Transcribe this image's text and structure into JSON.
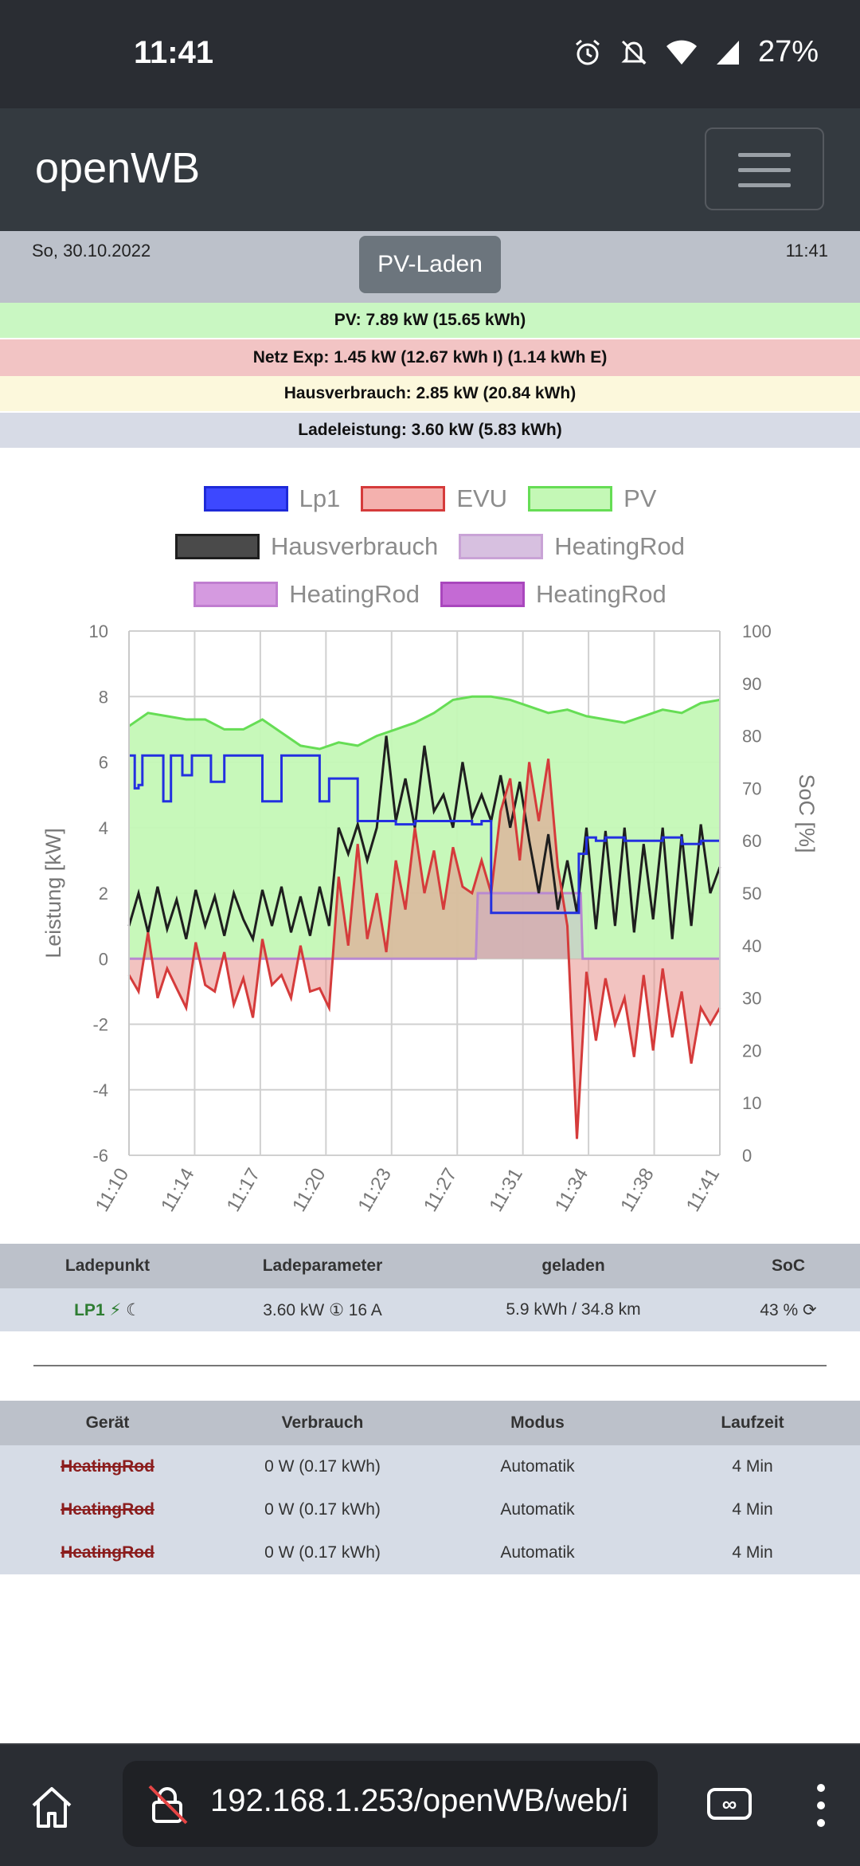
{
  "status_bar": {
    "time": "11:41",
    "battery": "27%",
    "icons": [
      "alarm-icon",
      "mute-icon",
      "wifi-icon",
      "signal-icon"
    ]
  },
  "navbar": {
    "brand": "openWB",
    "menu_icon": "hamburger-icon"
  },
  "datebar": {
    "date": "So, 30.10.2022",
    "mode_button": "PV-Laden",
    "time": "11:41"
  },
  "summary": {
    "pv": "PV: 7.89 kW (15.65 kWh)",
    "grid": "Netz Exp: 1.45 kW (12.67 kWh I) (1.14 kWh E)",
    "house": "Hausverbrauch: 2.85 kW (20.84 kWh)",
    "charge": "Ladeleistung: 3.60 kW (5.83 kWh)"
  },
  "colors": {
    "pv_bg": "#c9f7c2",
    "grid_bg": "#f2c4c4",
    "house_bg": "#fcf8dc",
    "charge_bg": "#d7dbe6"
  },
  "chart_data": {
    "type": "line",
    "ylabel": "Leistung [kW]",
    "y2label": "SoC [%]",
    "ylim": [
      -6,
      10
    ],
    "y2lim": [
      0,
      100
    ],
    "y_ticks": [
      "10",
      "8",
      "6",
      "4",
      "2",
      "0",
      "-2",
      "-4",
      "-6"
    ],
    "y2_ticks": [
      "100",
      "90",
      "80",
      "70",
      "60",
      "50",
      "40",
      "30",
      "20",
      "10",
      "0"
    ],
    "x_labels": [
      "11:10",
      "11:14",
      "11:17",
      "11:20",
      "11:23",
      "11:27",
      "11:31",
      "11:34",
      "11:38",
      "11:41"
    ],
    "legend": [
      {
        "name": "Lp1",
        "fill": "#3d48ff",
        "stroke": "#1e2ad8"
      },
      {
        "name": "EVU",
        "fill": "#f4b1ae",
        "stroke": "#d53b3b"
      },
      {
        "name": "PV",
        "fill": "#c4f8b6",
        "stroke": "#66dd55"
      },
      {
        "name": "Hausverbrauch",
        "fill": "#4a4a4a",
        "stroke": "#1e1e1e"
      },
      {
        "name": "HeatingRod",
        "fill": "#d7c0e0",
        "stroke": "#c9a3d6"
      },
      {
        "name": "HeatingRod",
        "fill": "#d59ae0",
        "stroke": "#c07dd0"
      },
      {
        "name": "HeatingRod",
        "fill": "#c46ad4",
        "stroke": "#a947bd"
      }
    ],
    "series": [
      {
        "name": "PV",
        "t": [
          0,
          1,
          2,
          3,
          4,
          5,
          6,
          7,
          8,
          9,
          10,
          11,
          12,
          13,
          14,
          15,
          16,
          17,
          18,
          19,
          20,
          21,
          22,
          23,
          24,
          25,
          26,
          27,
          28,
          29,
          30,
          31
        ],
        "values": [
          7.1,
          7.5,
          7.4,
          7.3,
          7.3,
          7.0,
          7.0,
          7.3,
          6.9,
          6.5,
          6.4,
          6.6,
          6.5,
          6.8,
          7.0,
          7.2,
          7.5,
          7.9,
          8.0,
          8.0,
          7.9,
          7.7,
          7.5,
          7.6,
          7.4,
          7.3,
          7.2,
          7.4,
          7.6,
          7.5,
          7.8,
          7.9
        ]
      },
      {
        "name": "Lp1",
        "t": [
          0,
          0.3,
          0.5,
          0.7,
          1.2,
          1.8,
          2.2,
          2.8,
          3.3,
          3.9,
          4.3,
          5,
          6,
          7,
          8,
          9,
          10,
          10.5,
          11,
          12,
          13,
          14,
          15,
          16,
          17,
          18,
          18.5,
          18.8,
          19,
          20,
          21,
          22,
          23,
          23.5,
          23.6,
          24,
          24.5,
          25,
          26,
          27,
          28,
          29,
          30,
          31
        ],
        "values": [
          6.2,
          5.2,
          5.3,
          6.2,
          6.2,
          4.8,
          6.2,
          5.6,
          6.2,
          6.2,
          5.4,
          6.2,
          6.2,
          4.8,
          6.2,
          6.2,
          4.8,
          5.5,
          5.5,
          4.2,
          4.2,
          4.1,
          4.2,
          4.2,
          4.2,
          4.1,
          4.2,
          4.2,
          1.4,
          1.4,
          1.4,
          1.4,
          1.4,
          1.4,
          3.2,
          3.7,
          3.6,
          3.7,
          3.6,
          3.6,
          3.7,
          3.5,
          3.6,
          3.6
        ]
      },
      {
        "name": "Hausverbrauch",
        "t": [
          0,
          0.5,
          1,
          1.5,
          2,
          2.5,
          3,
          3.5,
          4,
          4.5,
          5,
          5.5,
          6,
          6.5,
          7,
          7.5,
          8,
          8.5,
          9,
          9.5,
          10,
          10.5,
          11,
          11.5,
          12,
          12.5,
          13,
          13.5,
          14,
          14.5,
          15,
          15.5,
          16,
          16.5,
          17,
          17.5,
          18,
          18.5,
          19,
          19.5,
          20,
          20.5,
          21,
          21.5,
          22,
          22.5,
          23,
          23.5,
          24,
          24.5,
          25,
          25.5,
          26,
          26.5,
          27,
          27.5,
          28,
          28.5,
          29,
          29.5,
          30,
          30.5,
          31
        ],
        "values": [
          1.0,
          2.0,
          0.8,
          2.2,
          0.9,
          1.8,
          0.6,
          2.1,
          1.0,
          1.9,
          0.7,
          2.0,
          1.2,
          0.6,
          2.1,
          1.0,
          2.2,
          0.8,
          1.9,
          0.7,
          2.2,
          1.0,
          4.0,
          3.2,
          4.1,
          3.0,
          4.0,
          6.8,
          4.2,
          5.5,
          4.0,
          6.5,
          4.5,
          5.0,
          4.0,
          6.0,
          4.3,
          5.0,
          4.2,
          5.6,
          4.0,
          5.4,
          3.6,
          2.0,
          3.8,
          1.5,
          3.0,
          1.4,
          4.0,
          0.9,
          3.9,
          1.0,
          4.0,
          0.8,
          3.5,
          1.2,
          4.0,
          0.6,
          3.8,
          1.0,
          4.1,
          2.0,
          2.8
        ]
      },
      {
        "name": "EVU",
        "t": [
          0,
          0.5,
          1,
          1.5,
          2,
          2.5,
          3,
          3.5,
          4,
          4.5,
          5,
          5.5,
          6,
          6.5,
          7,
          7.5,
          8,
          8.5,
          9,
          9.5,
          10,
          10.5,
          11,
          11.5,
          12,
          12.5,
          13,
          13.5,
          14,
          14.5,
          15,
          15.5,
          16,
          16.5,
          17,
          17.5,
          18,
          18.5,
          19,
          19.5,
          20,
          20.5,
          21,
          21.5,
          22,
          22.5,
          23,
          23.5,
          24,
          24.5,
          25,
          25.5,
          26,
          26.5,
          27,
          27.5,
          28,
          28.5,
          29,
          29.5,
          30,
          30.5,
          31
        ],
        "values": [
          -0.5,
          -1.0,
          0.8,
          -1.2,
          -0.3,
          -0.9,
          -1.5,
          0.5,
          -0.8,
          -1.0,
          0.2,
          -1.4,
          -0.6,
          -1.8,
          0.6,
          -0.8,
          -0.5,
          -1.2,
          0.4,
          -1.0,
          -0.9,
          -1.5,
          2.5,
          0.4,
          3.5,
          0.6,
          2.0,
          0.2,
          3.0,
          1.5,
          4.0,
          2.0,
          3.3,
          1.5,
          3.4,
          2.2,
          2.0,
          3.0,
          2.0,
          4.5,
          5.5,
          3.0,
          6.0,
          4.2,
          6.1,
          2.8,
          1.0,
          -5.5,
          -0.4,
          -2.5,
          -0.6,
          -2.0,
          -1.2,
          -3.0,
          -0.5,
          -2.8,
          -0.3,
          -2.4,
          -1.0,
          -3.2,
          -1.5,
          -2.0,
          -1.5
        ]
      },
      {
        "name": "HeatingRod",
        "t": [
          0,
          18.2,
          18.3,
          23.7,
          23.8,
          31
        ],
        "values": [
          0,
          0,
          2.0,
          2.0,
          0,
          0
        ]
      }
    ]
  },
  "lp_table": {
    "headers": [
      "Ladepunkt",
      "Ladeparameter",
      "geladen",
      "SoC"
    ],
    "rows": [
      {
        "name": "LP1",
        "params": "3.60 kW ① 16 A",
        "charged": "5.9 kWh / 34.8 km",
        "soc": "43 %"
      }
    ]
  },
  "device_table": {
    "headers": [
      "Gerät",
      "Verbrauch",
      "Modus",
      "Laufzeit"
    ],
    "rows": [
      {
        "name": "HeatingRod",
        "usage": "0 W (0.17 kWh)",
        "mode": "Automatik",
        "runtime": "4 Min"
      },
      {
        "name": "HeatingRod",
        "usage": "0 W (0.17 kWh)",
        "mode": "Automatik",
        "runtime": "4 Min"
      },
      {
        "name": "HeatingRod",
        "usage": "0 W (0.17 kWh)",
        "mode": "Automatik",
        "runtime": "4 Min"
      }
    ]
  },
  "browser": {
    "url": "192.168.1.253/openWB/web/i"
  }
}
